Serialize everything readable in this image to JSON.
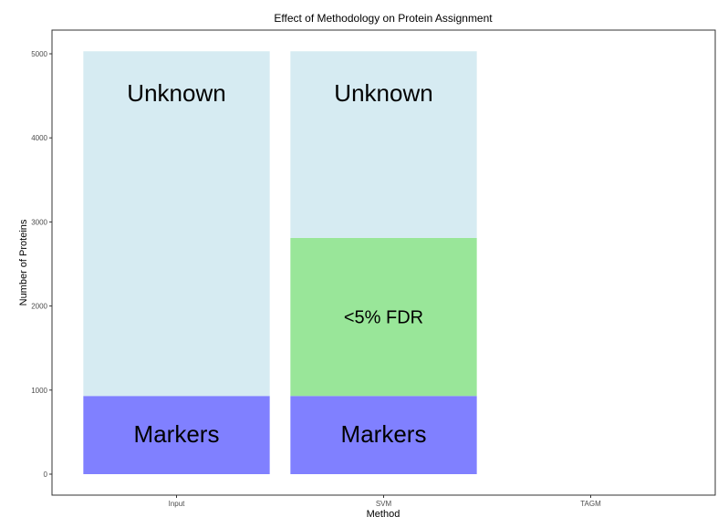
{
  "chart_data": {
    "type": "bar",
    "stacked": true,
    "title": "Effect of Methodology on Protein Assignment",
    "xlabel": "Method",
    "ylabel": "Number of Proteins",
    "categories": [
      "Input",
      "SVM",
      "TAGM"
    ],
    "ylim": [
      0,
      5000
    ],
    "yticks": [
      0,
      1000,
      2000,
      3000,
      4000,
      5000
    ],
    "grid": false,
    "legend": "none",
    "series": [
      {
        "name": "Markers",
        "color": "#8080ff",
        "values": [
          930,
          930,
          null
        ]
      },
      {
        "name": "<5% FDR",
        "color": "#99e699",
        "values": [
          0,
          1880,
          null
        ]
      },
      {
        "name": "Unknown",
        "color": "#d6ebf2",
        "values": [
          4100,
          2220,
          null
        ]
      }
    ],
    "segment_labels": [
      {
        "category": "Input",
        "series": "Unknown",
        "text": "Unknown"
      },
      {
        "category": "Input",
        "series": "Markers",
        "text": "Markers"
      },
      {
        "category": "SVM",
        "series": "Unknown",
        "text": "Unknown"
      },
      {
        "category": "SVM",
        "series": "<5% FDR",
        "text": "<5% FDR"
      },
      {
        "category": "SVM",
        "series": "Markers",
        "text": "Markers"
      }
    ]
  }
}
